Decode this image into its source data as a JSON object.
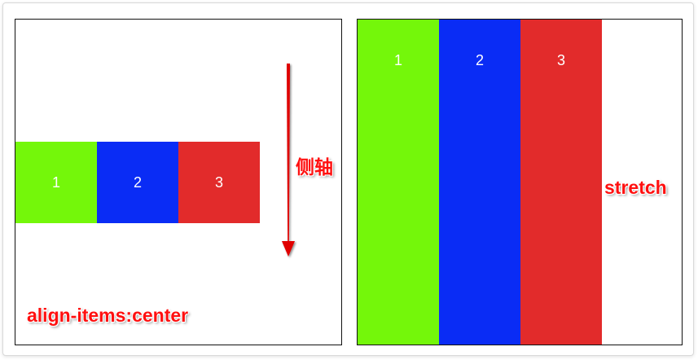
{
  "left_panel": {
    "items": [
      {
        "label": "1",
        "color": "#74f70a"
      },
      {
        "label": "2",
        "color": "#0a2cf5"
      },
      {
        "label": "3",
        "color": "#e22b2b"
      }
    ],
    "caption": "align-items:center",
    "axis_label": "侧轴",
    "arrow_color": "#e00000"
  },
  "right_panel": {
    "items": [
      {
        "label": "1",
        "color": "#74f70a"
      },
      {
        "label": "2",
        "color": "#0a2cf5"
      },
      {
        "label": "3",
        "color": "#e22b2b"
      }
    ],
    "caption": "stretch"
  }
}
